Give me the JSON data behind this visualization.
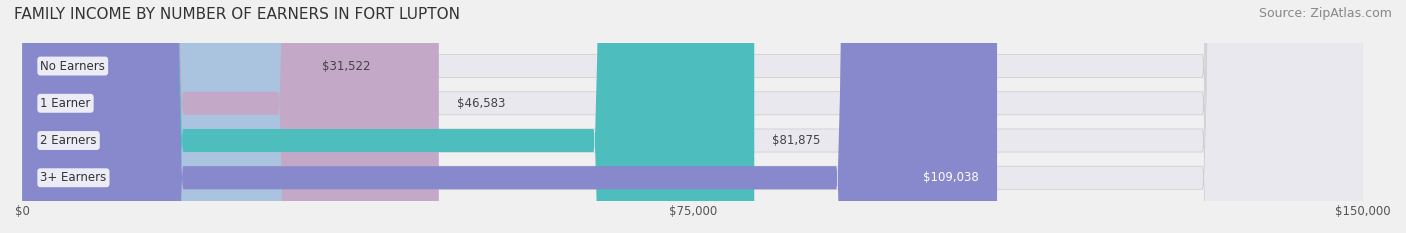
{
  "title": "FAMILY INCOME BY NUMBER OF EARNERS IN FORT LUPTON",
  "source": "Source: ZipAtlas.com",
  "categories": [
    "No Earners",
    "1 Earner",
    "2 Earners",
    "3+ Earners"
  ],
  "values": [
    31522,
    46583,
    81875,
    109038
  ],
  "bar_colors": [
    "#aac4e0",
    "#c4a8c8",
    "#4dbdbd",
    "#8888cc"
  ],
  "label_colors": [
    "#333333",
    "#333333",
    "#333333",
    "#ffffff"
  ],
  "max_value": 150000,
  "xticks": [
    0,
    75000,
    150000
  ],
  "xtick_labels": [
    "$0",
    "$75,000",
    "$150,000"
  ],
  "background_color": "#f0f0f0",
  "bar_bg_color": "#e8e8ee",
  "title_fontsize": 11,
  "source_fontsize": 9
}
